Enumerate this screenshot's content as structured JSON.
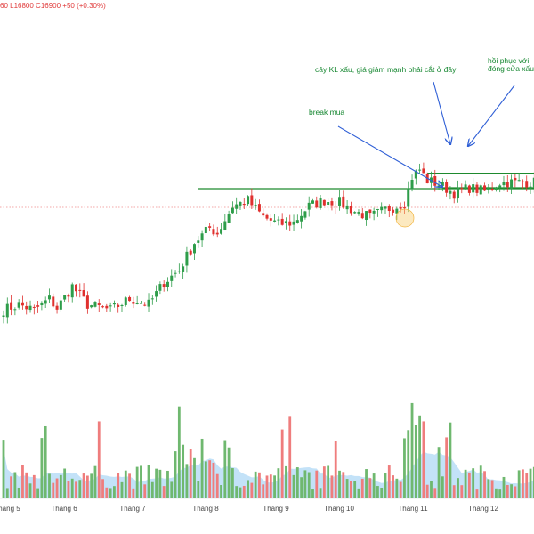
{
  "ohlc_text": "60 L16800 C16900 +50 (+0.30%)",
  "colors": {
    "up": "#2e9d4a",
    "down": "#e0302e",
    "vol_up": "#6fb86f",
    "vol_down": "#ef7d7d",
    "vol_ma": "#a9d6f5",
    "annotation": "#14862f",
    "arrow": "#2f5fd6",
    "level": "#1e8a2e"
  },
  "annotations": [
    {
      "id": "break-mua",
      "text": "break mua"
    },
    {
      "id": "cay-kl",
      "text": "cây KL xấu, giá giảm mạnh phải cắt ở đây"
    },
    {
      "id": "hoi-phuc-1",
      "text": "hồi phục với"
    },
    {
      "id": "hoi-phuc-2",
      "text": "đóng cửa xấu"
    }
  ],
  "chart_data": {
    "type": "candlestick",
    "x_ticks": [
      "Tháng 5",
      "Tháng 6",
      "Tháng 7",
      "Tháng 8",
      "Tháng 9",
      "Tháng 10",
      "Tháng 11",
      "Tháng 12"
    ],
    "last_close": 16900,
    "low": 16800,
    "change": "+50 (+0.30%)",
    "price_path": [
      [
        0,
        0.13
      ],
      [
        4,
        0.16
      ],
      [
        8,
        0.13
      ],
      [
        12,
        0.19
      ],
      [
        14,
        0.14
      ],
      [
        18,
        0.26
      ],
      [
        22,
        0.16
      ],
      [
        28,
        0.13
      ],
      [
        33,
        0.19
      ],
      [
        38,
        0.16
      ],
      [
        42,
        0.28
      ],
      [
        46,
        0.35
      ],
      [
        50,
        0.5
      ],
      [
        54,
        0.58
      ],
      [
        56,
        0.55
      ],
      [
        60,
        0.7
      ],
      [
        64,
        0.73
      ],
      [
        68,
        0.64
      ],
      [
        72,
        0.6
      ],
      [
        76,
        0.61
      ],
      [
        80,
        0.7
      ],
      [
        84,
        0.73
      ],
      [
        88,
        0.72
      ],
      [
        92,
        0.67
      ],
      [
        96,
        0.64
      ],
      [
        100,
        0.68
      ],
      [
        103,
        0.7
      ],
      [
        105,
        0.72
      ],
      [
        107,
        0.86
      ],
      [
        109,
        0.9
      ],
      [
        111,
        0.84
      ],
      [
        114,
        0.82
      ],
      [
        118,
        0.77
      ],
      [
        122,
        0.8
      ],
      [
        126,
        0.78
      ],
      [
        130,
        0.83
      ]
    ],
    "levels": [
      {
        "name": "resistance",
        "value": 0.795,
        "from": 51,
        "to": 140
      },
      {
        "name": "range-top",
        "value": 0.88,
        "from": 111,
        "to": 140
      },
      {
        "name": "range-bottom",
        "value": 0.8,
        "from": 115,
        "to": 140
      }
    ]
  }
}
